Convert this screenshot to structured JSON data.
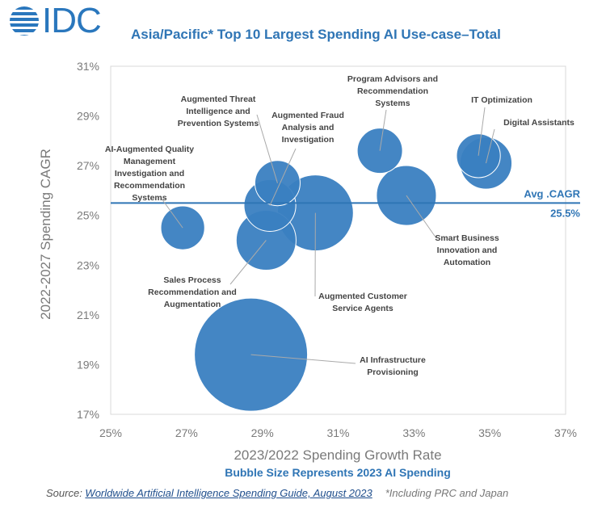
{
  "logo": "IDC",
  "title": "Asia/Pacific* Top 10 Largest Spending AI Use-case–Total",
  "subtitle": "Bubble Size Represents 2023 AI Spending",
  "source": {
    "prefix": "Source: ",
    "link": "Worldwide Artificial Intelligence Spending Guide, August 2023",
    "note": "*Including PRC and Japan"
  },
  "chart_data": {
    "type": "scatter",
    "subtype": "bubble",
    "xlabel": "2023/2022 Spending Growth Rate",
    "ylabel": "2022-2027 Spending CAGR",
    "xlim": [
      25,
      37
    ],
    "ylim": [
      17,
      31
    ],
    "xticks": [
      "25%",
      "27%",
      "29%",
      "31%",
      "33%",
      "35%",
      "37%"
    ],
    "yticks": [
      "31%",
      "29%",
      "27%",
      "25%",
      "23%",
      "21%",
      "19%",
      "17%"
    ],
    "size_note": "relative bubble size (largest = 100)",
    "points": [
      {
        "name": "AI-Augmented Quality Management Investigation and Recommendation Systems",
        "lines": [
          "AI-Augmented Quality",
          "Management",
          "Investigation and",
          "Recommendation",
          "Systems"
        ],
        "x": 26.9,
        "y": 24.5,
        "size": 15
      },
      {
        "name": "Sales Process Recommendation and Augmentation",
        "lines": [
          "Sales Process",
          "Recommendation and",
          "Augmentation"
        ],
        "x": 29.1,
        "y": 24.0,
        "size": 28
      },
      {
        "name": "Augmented Threat Intelligence and Prevention Systems",
        "lines": [
          "Augmented Threat",
          "Intelligence and",
          "Prevention Systems"
        ],
        "x": 29.4,
        "y": 26.3,
        "size": 16
      },
      {
        "name": "Augmented Fraud Analysis and Investigation",
        "lines": [
          "Augmented Fraud",
          "Analysis and",
          "Investigation"
        ],
        "x": 29.2,
        "y": 25.4,
        "size": 21
      },
      {
        "name": "Augmented Customer Service Agents",
        "lines": [
          "Augmented Customer",
          "Service Agents"
        ],
        "x": 30.4,
        "y": 25.1,
        "size": 45
      },
      {
        "name": "AI Infrastructure Provisioning",
        "lines": [
          "AI Infrastructure",
          "Provisioning"
        ],
        "x": 28.7,
        "y": 19.4,
        "size": 100
      },
      {
        "name": "Program Advisors and Recommendation Systems",
        "lines": [
          "Program Advisors and",
          "Recommendation",
          "Systems"
        ],
        "x": 32.1,
        "y": 27.6,
        "size": 16
      },
      {
        "name": "Smart Business Innovation and Automation",
        "lines": [
          "Smart Business",
          "Innovation and",
          "Automation"
        ],
        "x": 32.8,
        "y": 25.8,
        "size": 28
      },
      {
        "name": "IT Optimization",
        "lines": [
          "IT Optimization"
        ],
        "x": 34.7,
        "y": 27.4,
        "size": 15
      },
      {
        "name": "Digital Assistants",
        "lines": [
          "Digital Assistants"
        ],
        "x": 34.9,
        "y": 27.1,
        "size": 21
      }
    ],
    "reference_line": {
      "label": "Avg .CAGR",
      "value": 25.5,
      "value_label": "25.5%"
    },
    "colors": {
      "bubble": "#3a7fc1",
      "line": "#2f75b5",
      "text": "#2f75b5"
    }
  }
}
